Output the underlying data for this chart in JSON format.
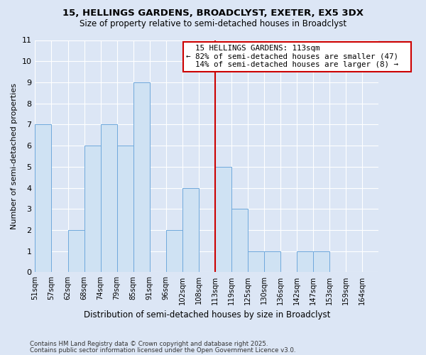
{
  "title": "15, HELLINGS GARDENS, BROADCLYST, EXETER, EX5 3DX",
  "subtitle": "Size of property relative to semi-detached houses in Broadclyst",
  "xlabel": "Distribution of semi-detached houses by size in Broadclyst",
  "ylabel": "Number of semi-detached properties",
  "footnote1": "Contains HM Land Registry data © Crown copyright and database right 2025.",
  "footnote2": "Contains public sector information licensed under the Open Government Licence v3.0.",
  "bin_labels": [
    "51sqm",
    "57sqm",
    "62sqm",
    "68sqm",
    "74sqm",
    "79sqm",
    "85sqm",
    "91sqm",
    "96sqm",
    "102sqm",
    "108sqm",
    "113sqm",
    "119sqm",
    "125sqm",
    "130sqm",
    "136sqm",
    "142sqm",
    "147sqm",
    "153sqm",
    "159sqm",
    "164sqm"
  ],
  "bar_heights": [
    7,
    0,
    2,
    6,
    7,
    6,
    9,
    0,
    2,
    4,
    0,
    5,
    3,
    1,
    1,
    0,
    1,
    1,
    0,
    0,
    0
  ],
  "bar_color": "#cfe2f3",
  "bar_edge_color": "#6fa8dc",
  "highlight_line_index": 11,
  "highlight_label": "15 HELLINGS GARDENS: 113sqm",
  "pct_smaller": "82% of semi-detached houses are smaller (47)",
  "pct_larger": "14% of semi-detached houses are larger (8)",
  "box_color": "#ffffff",
  "box_border_color": "#cc0000",
  "line_color": "#cc0000",
  "ylim": [
    0,
    11
  ],
  "yticks": [
    0,
    1,
    2,
    3,
    4,
    5,
    6,
    7,
    8,
    9,
    10,
    11
  ],
  "background_color": "#dce6f5",
  "grid_color": "#ffffff"
}
